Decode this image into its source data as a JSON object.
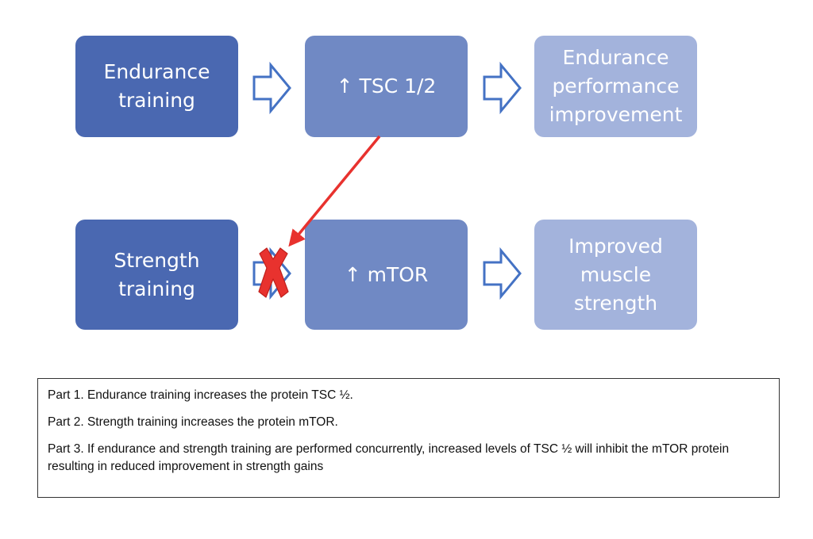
{
  "diagram": {
    "top_row": {
      "endurance_training": "Endurance\ntraining",
      "tsc": "↑ TSC 1/2",
      "endurance_performance": "Endurance\nperformance\nimprovement"
    },
    "bottom_row": {
      "strength_training": "Strength\ntraining",
      "mtor": "↑ mTOR",
      "muscle_strength": "Improved\nmuscle\nstrength"
    },
    "colors": {
      "dark_box": "#4a68b1",
      "mid_box": "#7089c4",
      "light_box": "#a3b3dc",
      "arrow_outline": "#4472c4",
      "inhibition_arrow": "#e8322e",
      "x_mark": "#e8322e"
    }
  },
  "legend": {
    "part1": "Part 1. Endurance training increases the protein TSC ½.",
    "part2": "Part 2. Strength training increases the protein mTOR.",
    "part3": "Part 3. If endurance and strength training are performed concurrently, increased levels of TSC ½ will inhibit the mTOR protein resulting in reduced improvement in strength gains"
  }
}
